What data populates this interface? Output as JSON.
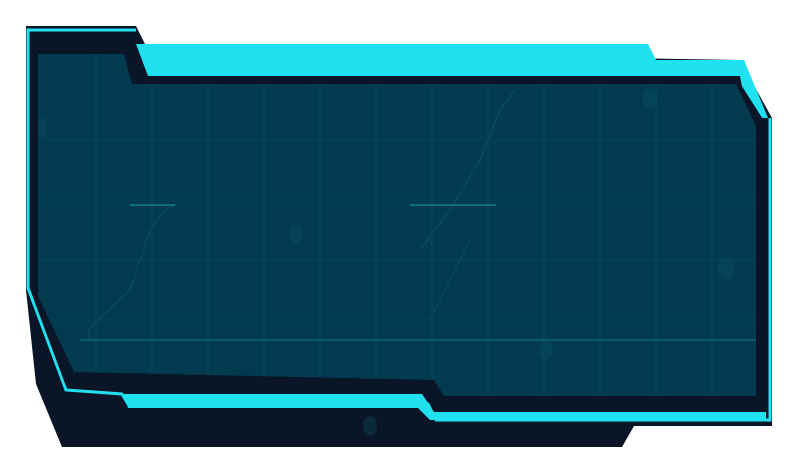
{
  "colors": {
    "page_background": "#ffffff",
    "dark_frame": "#0a1628",
    "cyan_accent": "#1fe1ef",
    "panel_fill": "#023b4f",
    "grid_line": "#0c5566",
    "circuit_trace": "#0b4a5c"
  },
  "decorations": {
    "grid": true,
    "circuit_traces": true,
    "faint_emblems": true
  }
}
